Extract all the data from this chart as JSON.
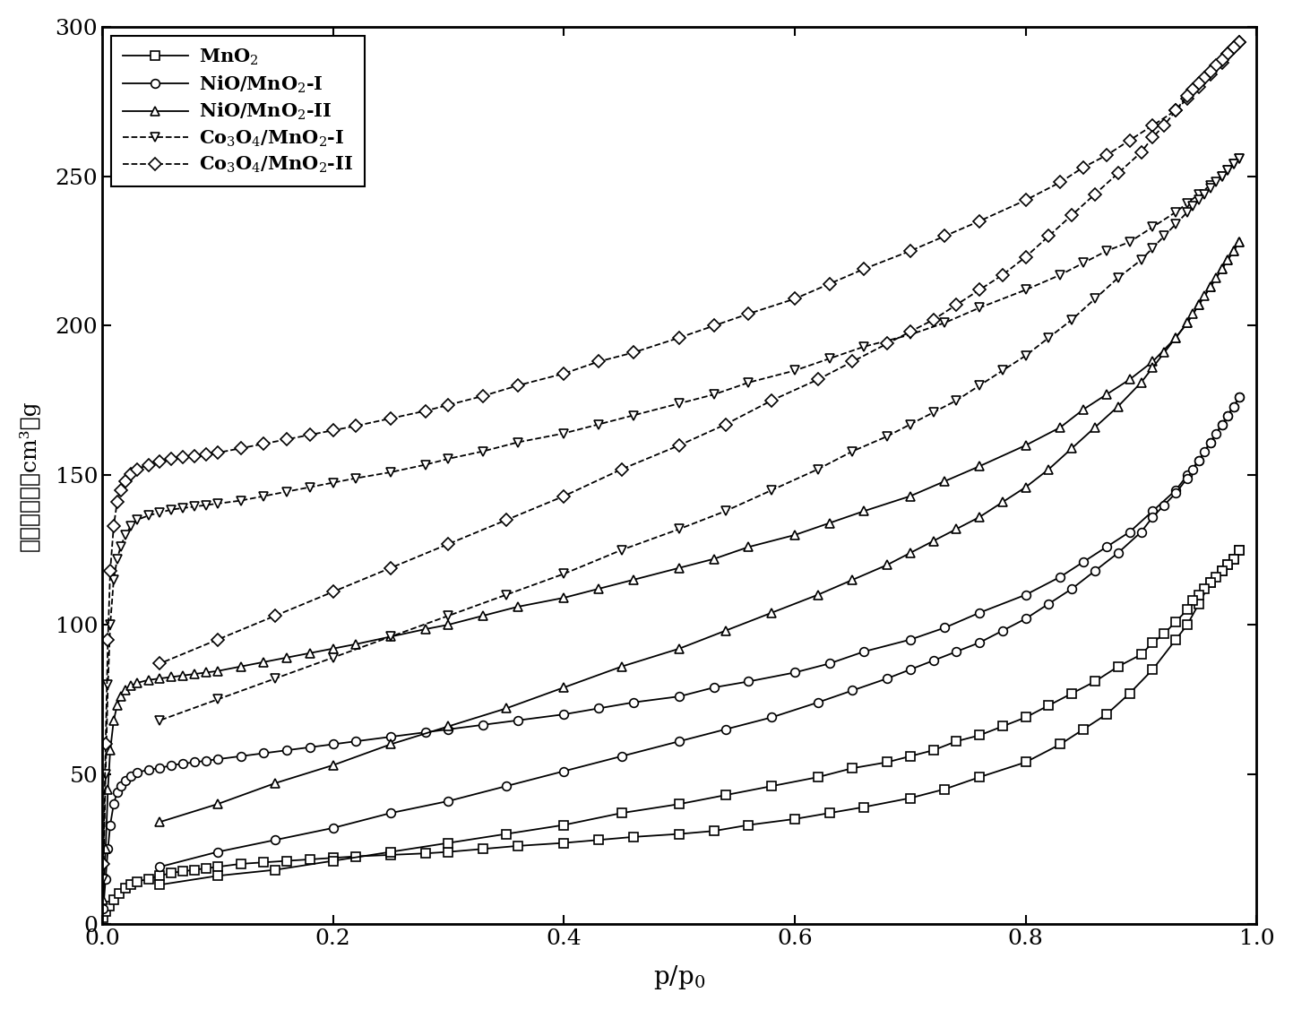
{
  "xlabel": "p/p$_0$",
  "xlim": [
    0.0,
    1.0
  ],
  "ylim": [
    0,
    300
  ],
  "yticks": [
    0,
    50,
    100,
    150,
    200,
    250,
    300
  ],
  "xticks": [
    0.0,
    0.2,
    0.4,
    0.6,
    0.8,
    1.0
  ],
  "legend_labels": [
    "MnO$_2$",
    "NiO/MnO$_2$-I",
    "NiO/MnO$_2$-II",
    "Co$_3$O$_4$/MnO$_2$-I",
    "Co$_3$O$_4$/MnO$_2$-II"
  ],
  "markers": [
    "s",
    "o",
    "^",
    "v",
    "D"
  ],
  "linestyles": [
    "-",
    "-",
    "-",
    "--",
    "--"
  ],
  "markersize": 7,
  "linewidth": 1.3,
  "series": {
    "MnO2_ads": {
      "x": [
        0.001,
        0.003,
        0.006,
        0.01,
        0.015,
        0.02,
        0.025,
        0.03,
        0.04,
        0.05,
        0.06,
        0.07,
        0.08,
        0.09,
        0.1,
        0.12,
        0.14,
        0.16,
        0.18,
        0.2,
        0.22,
        0.25,
        0.28,
        0.3,
        0.33,
        0.36,
        0.4,
        0.43,
        0.46,
        0.5,
        0.53,
        0.56,
        0.6,
        0.63,
        0.66,
        0.7,
        0.73,
        0.76,
        0.8,
        0.83,
        0.85,
        0.87,
        0.89,
        0.91,
        0.93,
        0.94,
        0.95,
        0.96,
        0.97,
        0.975,
        0.98,
        0.985
      ],
      "y": [
        2,
        4,
        6,
        8,
        10,
        12,
        13,
        14,
        15,
        16,
        17,
        17.5,
        18,
        18.5,
        19,
        20,
        20.5,
        21,
        21.5,
        22,
        22.5,
        23,
        23.5,
        24,
        25,
        26,
        27,
        28,
        29,
        30,
        31,
        33,
        35,
        37,
        39,
        42,
        45,
        49,
        54,
        60,
        65,
        70,
        77,
        85,
        95,
        100,
        107,
        114,
        118,
        120,
        122,
        125
      ]
    },
    "MnO2_des": {
      "x": [
        0.985,
        0.98,
        0.975,
        0.97,
        0.965,
        0.96,
        0.955,
        0.95,
        0.945,
        0.94,
        0.93,
        0.92,
        0.91,
        0.9,
        0.88,
        0.86,
        0.84,
        0.82,
        0.8,
        0.78,
        0.76,
        0.74,
        0.72,
        0.7,
        0.68,
        0.65,
        0.62,
        0.58,
        0.54,
        0.5,
        0.45,
        0.4,
        0.35,
        0.3,
        0.25,
        0.2,
        0.15,
        0.1,
        0.05
      ],
      "y": [
        125,
        122,
        120,
        118,
        116,
        114,
        112,
        110,
        108,
        105,
        101,
        97,
        94,
        90,
        86,
        81,
        77,
        73,
        69,
        66,
        63,
        61,
        58,
        56,
        54,
        52,
        49,
        46,
        43,
        40,
        37,
        33,
        30,
        27,
        24,
        21,
        18,
        16,
        13
      ]
    },
    "NiO_MnO2_I_ads": {
      "x": [
        0.001,
        0.003,
        0.005,
        0.007,
        0.01,
        0.013,
        0.016,
        0.02,
        0.025,
        0.03,
        0.04,
        0.05,
        0.06,
        0.07,
        0.08,
        0.09,
        0.1,
        0.12,
        0.14,
        0.16,
        0.18,
        0.2,
        0.22,
        0.25,
        0.28,
        0.3,
        0.33,
        0.36,
        0.4,
        0.43,
        0.46,
        0.5,
        0.53,
        0.56,
        0.6,
        0.63,
        0.66,
        0.7,
        0.73,
        0.76,
        0.8,
        0.83,
        0.85,
        0.87,
        0.89,
        0.91,
        0.93,
        0.94,
        0.95,
        0.96,
        0.97,
        0.975,
        0.98,
        0.985
      ],
      "y": [
        5,
        15,
        25,
        33,
        40,
        44,
        46,
        48,
        49.5,
        50.5,
        51.5,
        52,
        53,
        53.5,
        54,
        54.5,
        55,
        56,
        57,
        58,
        59,
        60,
        61,
        62.5,
        64,
        65,
        66.5,
        68,
        70,
        72,
        74,
        76,
        79,
        81,
        84,
        87,
        91,
        95,
        99,
        104,
        110,
        116,
        121,
        126,
        131,
        138,
        145,
        150,
        155,
        161,
        167,
        170,
        173,
        176
      ]
    },
    "NiO_MnO2_I_des": {
      "x": [
        0.985,
        0.98,
        0.975,
        0.97,
        0.965,
        0.96,
        0.955,
        0.95,
        0.945,
        0.94,
        0.93,
        0.92,
        0.91,
        0.9,
        0.88,
        0.86,
        0.84,
        0.82,
        0.8,
        0.78,
        0.76,
        0.74,
        0.72,
        0.7,
        0.68,
        0.65,
        0.62,
        0.58,
        0.54,
        0.5,
        0.45,
        0.4,
        0.35,
        0.3,
        0.25,
        0.2,
        0.15,
        0.1,
        0.05
      ],
      "y": [
        176,
        173,
        170,
        167,
        164,
        161,
        158,
        155,
        152,
        149,
        144,
        140,
        136,
        131,
        124,
        118,
        112,
        107,
        102,
        98,
        94,
        91,
        88,
        85,
        82,
        78,
        74,
        69,
        65,
        61,
        56,
        51,
        46,
        41,
        37,
        32,
        28,
        24,
        19
      ]
    },
    "NiO_MnO2_II_ads": {
      "x": [
        0.001,
        0.003,
        0.005,
        0.007,
        0.01,
        0.013,
        0.016,
        0.02,
        0.025,
        0.03,
        0.04,
        0.05,
        0.06,
        0.07,
        0.08,
        0.09,
        0.1,
        0.12,
        0.14,
        0.16,
        0.18,
        0.2,
        0.22,
        0.25,
        0.28,
        0.3,
        0.33,
        0.36,
        0.4,
        0.43,
        0.46,
        0.5,
        0.53,
        0.56,
        0.6,
        0.63,
        0.66,
        0.7,
        0.73,
        0.76,
        0.8,
        0.83,
        0.85,
        0.87,
        0.89,
        0.91,
        0.93,
        0.94,
        0.95,
        0.96,
        0.97,
        0.975,
        0.98,
        0.985
      ],
      "y": [
        8,
        25,
        45,
        58,
        68,
        73,
        76,
        78,
        79.5,
        80.5,
        81.5,
        82,
        82.5,
        83,
        83.5,
        84,
        84.5,
        86,
        87.5,
        89,
        90.5,
        92,
        93.5,
        96,
        98.5,
        100,
        103,
        106,
        109,
        112,
        115,
        119,
        122,
        126,
        130,
        134,
        138,
        143,
        148,
        153,
        160,
        166,
        172,
        177,
        182,
        188,
        196,
        201,
        207,
        213,
        219,
        222,
        225,
        228
      ]
    },
    "NiO_MnO2_II_des": {
      "x": [
        0.985,
        0.98,
        0.975,
        0.97,
        0.965,
        0.96,
        0.955,
        0.95,
        0.945,
        0.94,
        0.93,
        0.92,
        0.91,
        0.9,
        0.88,
        0.86,
        0.84,
        0.82,
        0.8,
        0.78,
        0.76,
        0.74,
        0.72,
        0.7,
        0.68,
        0.65,
        0.62,
        0.58,
        0.54,
        0.5,
        0.45,
        0.4,
        0.35,
        0.3,
        0.25,
        0.2,
        0.15,
        0.1,
        0.05
      ],
      "y": [
        228,
        225,
        222,
        219,
        216,
        213,
        210,
        207,
        204,
        201,
        196,
        191,
        186,
        181,
        173,
        166,
        159,
        152,
        146,
        141,
        136,
        132,
        128,
        124,
        120,
        115,
        110,
        104,
        98,
        92,
        86,
        79,
        72,
        66,
        60,
        53,
        47,
        40,
        34
      ]
    },
    "Co3O4_MnO2_I_ads": {
      "x": [
        0.001,
        0.003,
        0.005,
        0.007,
        0.01,
        0.013,
        0.016,
        0.02,
        0.025,
        0.03,
        0.04,
        0.05,
        0.06,
        0.07,
        0.08,
        0.09,
        0.1,
        0.12,
        0.14,
        0.16,
        0.18,
        0.2,
        0.22,
        0.25,
        0.28,
        0.3,
        0.33,
        0.36,
        0.4,
        0.43,
        0.46,
        0.5,
        0.53,
        0.56,
        0.6,
        0.63,
        0.66,
        0.7,
        0.73,
        0.76,
        0.8,
        0.83,
        0.85,
        0.87,
        0.89,
        0.91,
        0.93,
        0.94,
        0.95,
        0.96,
        0.97,
        0.975,
        0.98,
        0.985
      ],
      "y": [
        15,
        50,
        80,
        100,
        115,
        122,
        126,
        130,
        133,
        135,
        136.5,
        137.5,
        138.5,
        139,
        139.5,
        140,
        140.5,
        141.5,
        143,
        144.5,
        146,
        147.5,
        149,
        151,
        153.5,
        155.5,
        158,
        161,
        164,
        167,
        170,
        174,
        177,
        181,
        185,
        189,
        193,
        197,
        201,
        206,
        212,
        217,
        221,
        225,
        228,
        233,
        238,
        241,
        244,
        247,
        250,
        252,
        254,
        256
      ]
    },
    "Co3O4_MnO2_I_des": {
      "x": [
        0.985,
        0.98,
        0.975,
        0.97,
        0.965,
        0.96,
        0.955,
        0.95,
        0.945,
        0.94,
        0.93,
        0.92,
        0.91,
        0.9,
        0.88,
        0.86,
        0.84,
        0.82,
        0.8,
        0.78,
        0.76,
        0.74,
        0.72,
        0.7,
        0.68,
        0.65,
        0.62,
        0.58,
        0.54,
        0.5,
        0.45,
        0.4,
        0.35,
        0.3,
        0.25,
        0.2,
        0.15,
        0.1,
        0.05
      ],
      "y": [
        256,
        254,
        252,
        250,
        248,
        246,
        244,
        242,
        240,
        238,
        234,
        230,
        226,
        222,
        216,
        209,
        202,
        196,
        190,
        185,
        180,
        175,
        171,
        167,
        163,
        158,
        152,
        145,
        138,
        132,
        125,
        117,
        110,
        103,
        96,
        89,
        82,
        75,
        68
      ]
    },
    "Co3O4_MnO2_II_ads": {
      "x": [
        0.001,
        0.003,
        0.005,
        0.007,
        0.01,
        0.013,
        0.016,
        0.02,
        0.025,
        0.03,
        0.04,
        0.05,
        0.06,
        0.07,
        0.08,
        0.09,
        0.1,
        0.12,
        0.14,
        0.16,
        0.18,
        0.2,
        0.22,
        0.25,
        0.28,
        0.3,
        0.33,
        0.36,
        0.4,
        0.43,
        0.46,
        0.5,
        0.53,
        0.56,
        0.6,
        0.63,
        0.66,
        0.7,
        0.73,
        0.76,
        0.8,
        0.83,
        0.85,
        0.87,
        0.89,
        0.91,
        0.93,
        0.94,
        0.95,
        0.96,
        0.97,
        0.975,
        0.98,
        0.985
      ],
      "y": [
        20,
        60,
        95,
        118,
        133,
        141,
        145,
        148,
        150.5,
        152,
        153.5,
        154.5,
        155.5,
        156,
        156.5,
        157,
        157.5,
        159,
        160.5,
        162,
        163.5,
        165,
        166.5,
        169,
        171.5,
        173.5,
        176.5,
        180,
        184,
        188,
        191,
        196,
        200,
        204,
        209,
        214,
        219,
        225,
        230,
        235,
        242,
        248,
        253,
        257,
        262,
        267,
        272,
        276,
        280,
        284,
        288,
        291,
        293,
        295
      ]
    },
    "Co3O4_MnO2_II_des": {
      "x": [
        0.985,
        0.98,
        0.975,
        0.97,
        0.965,
        0.96,
        0.955,
        0.95,
        0.945,
        0.94,
        0.93,
        0.92,
        0.91,
        0.9,
        0.88,
        0.86,
        0.84,
        0.82,
        0.8,
        0.78,
        0.76,
        0.74,
        0.72,
        0.7,
        0.68,
        0.65,
        0.62,
        0.58,
        0.54,
        0.5,
        0.45,
        0.4,
        0.35,
        0.3,
        0.25,
        0.2,
        0.15,
        0.1,
        0.05
      ],
      "y": [
        295,
        293,
        291,
        289,
        287,
        285,
        283,
        281,
        279,
        277,
        272,
        267,
        263,
        258,
        251,
        244,
        237,
        230,
        223,
        217,
        212,
        207,
        202,
        198,
        194,
        188,
        182,
        175,
        167,
        160,
        152,
        143,
        135,
        127,
        119,
        111,
        103,
        95,
        87
      ]
    }
  }
}
